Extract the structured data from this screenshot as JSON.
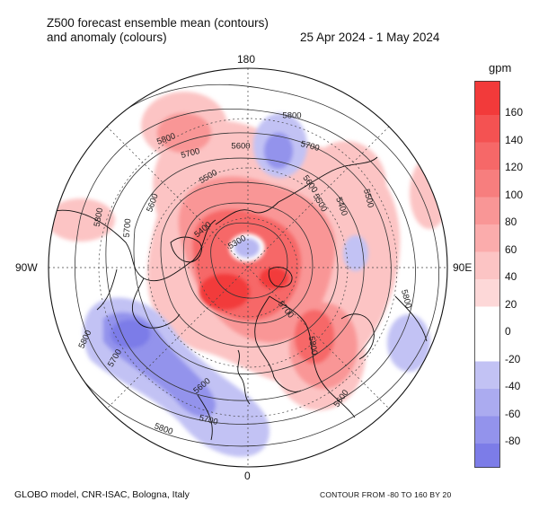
{
  "title": {
    "line1": "Z500 forecast ensemble mean (contours)",
    "line2": "and anomaly (colours)",
    "date": "25 Apr 2024 - 1 May 2024"
  },
  "longitude_labels": {
    "top": "180",
    "bottom": "0",
    "left": "90W",
    "right": "90E"
  },
  "colorbar": {
    "unit": "gpm",
    "labels": [
      "160",
      "140",
      "120",
      "100",
      "80",
      "60",
      "40",
      "20",
      "0",
      "-20",
      "-40",
      "-60",
      "-80"
    ],
    "positive_colors": [
      "#f23a3a",
      "#f45252",
      "#f66868",
      "#f77e7e",
      "#f99696",
      "#fbacac",
      "#fcc4c4",
      "#fdd8d8"
    ],
    "negative_colors": [
      "#c2c2f4",
      "#ababf0",
      "#9393ec",
      "#7c7ce8"
    ]
  },
  "contour_labels": [
    "5800",
    "5700",
    "5600",
    "5500",
    "5400",
    "5300"
  ],
  "contour_label_instances": [
    {
      "text": "5800"
    },
    {
      "text": "5700"
    },
    {
      "text": "5600"
    },
    {
      "text": "5500"
    },
    {
      "text": "5400"
    },
    {
      "text": "5800"
    },
    {
      "text": "5700"
    },
    {
      "text": "5600"
    },
    {
      "text": "5500"
    },
    {
      "text": "5300"
    },
    {
      "text": "5800"
    },
    {
      "text": "5700"
    },
    {
      "text": "5600"
    },
    {
      "text": "5500"
    },
    {
      "text": "5400"
    },
    {
      "text": "5800"
    },
    {
      "text": "5700"
    },
    {
      "text": "5600"
    },
    {
      "text": "5800"
    },
    {
      "text": "5700"
    },
    {
      "text": "5600"
    },
    {
      "text": "5800"
    },
    {
      "text": "5700"
    },
    {
      "text": "5800"
    }
  ],
  "footer": {
    "left": "GLOBO model, CNR-ISAC, Bologna, Italy",
    "right": "CONTOUR FROM -80 TO 160 BY 20"
  }
}
